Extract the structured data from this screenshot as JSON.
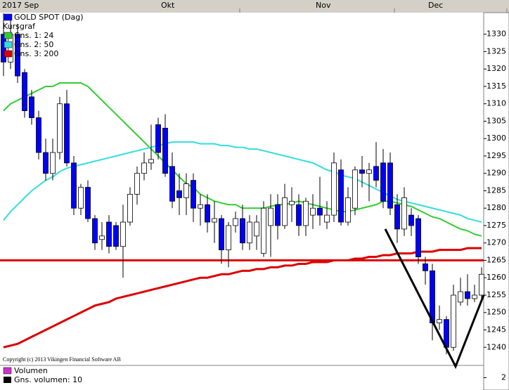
{
  "chart_data": {
    "type": "candlestick",
    "title": "GOLD SPOT (Dag)",
    "candle_name": "Kursgraf",
    "up_color": "#ffffff",
    "down_color": "#0000ff",
    "categories": [
      "2017 Sep",
      null,
      null,
      null,
      null,
      null,
      null,
      null,
      null,
      null,
      null,
      null,
      null,
      null,
      null,
      null,
      null,
      null,
      null,
      null,
      null,
      null,
      null,
      "Okt",
      null,
      null,
      null,
      null,
      null,
      null,
      null,
      null,
      null,
      null,
      null,
      null,
      null,
      null,
      null,
      null,
      null,
      null,
      null,
      null,
      null,
      "Nov",
      null,
      null,
      null,
      null,
      null,
      null,
      null,
      null,
      null,
      null,
      null,
      null,
      null,
      null,
      null,
      "Dec",
      null,
      null,
      null,
      null,
      null,
      null,
      null
    ],
    "open": [
      1330,
      1322,
      1330,
      1319,
      1312,
      1306,
      1296,
      1290,
      1296,
      1310,
      1293,
      1280,
      1286,
      1277,
      1271,
      1276,
      1275,
      1269,
      1276,
      1284,
      1290,
      1293,
      1304,
      1303,
      1292,
      1285,
      1283,
      1288,
      1280,
      1281,
      1276,
      1277,
      1268,
      1275,
      1277,
      1270,
      1272,
      1267,
      1275,
      1281,
      1275,
      1281,
      1281,
      1275,
      1278,
      1280,
      1276,
      1278,
      1291,
      1276,
      1280,
      1291,
      1290,
      1292,
      1293,
      1293,
      1281,
      1274,
      1278,
      1277,
      1264,
      1262,
      1247,
      1248,
      1240,
      1253,
      1256,
      1254,
      1255
    ],
    "high": [
      1336,
      1334,
      1333,
      1320,
      1314,
      1308,
      1300,
      1300,
      1312,
      1314,
      1295,
      1287,
      1288,
      1278,
      1276,
      1278,
      1276,
      1281,
      1286,
      1292,
      1296,
      1304,
      1306,
      1307,
      1296,
      1290,
      1290,
      1290,
      1284,
      1284,
      1282,
      1278,
      1276,
      1279,
      1281,
      1278,
      1278,
      1282,
      1284,
      1284,
      1287,
      1286,
      1284,
      1283,
      1284,
      1289,
      1282,
      1296,
      1294,
      1286,
      1292,
      1295,
      1293,
      1299,
      1297,
      1296,
      1284,
      1286,
      1280,
      1278,
      1266,
      1264,
      1252,
      1249,
      1258,
      1260,
      1261,
      1258,
      1263
    ],
    "low": [
      1318,
      1320,
      1316,
      1306,
      1304,
      1294,
      1288,
      1288,
      1294,
      1292,
      1278,
      1278,
      1276,
      1268,
      1268,
      1267,
      1268,
      1260,
      1275,
      1281,
      1288,
      1291,
      1294,
      1289,
      1280,
      1278,
      1278,
      1276,
      1275,
      1273,
      1270,
      1264,
      1263,
      1273,
      1268,
      1268,
      1268,
      1266,
      1266,
      1271,
      1274,
      1276,
      1272,
      1272,
      1274,
      1275,
      1274,
      1276,
      1275,
      1275,
      1278,
      1286,
      1282,
      1286,
      1280,
      1278,
      1270,
      1272,
      1272,
      1264,
      1258,
      1242,
      1245,
      1238,
      1239,
      1252,
      1252,
      1253,
      1253
    ],
    "close": [
      1322,
      1330,
      1318,
      1308,
      1306,
      1296,
      1290,
      1296,
      1310,
      1293,
      1280,
      1286,
      1277,
      1270,
      1272,
      1269,
      1269,
      1276,
      1284,
      1290,
      1293,
      1294,
      1296,
      1290,
      1282,
      1283,
      1287,
      1280,
      1281,
      1276,
      1277,
      1268,
      1275,
      1277,
      1270,
      1276,
      1276,
      1280,
      1280,
      1275,
      1283,
      1282,
      1275,
      1282,
      1280,
      1278,
      1278,
      1293,
      1276,
      1283,
      1291,
      1290,
      1291,
      1288,
      1282,
      1280,
      1274,
      1283,
      1275,
      1266,
      1262,
      1247,
      1248,
      1240,
      1255,
      1256,
      1254,
      1255,
      1261
    ],
    "series": [
      {
        "name": "Gns. 1: 24",
        "color": "#33cc33",
        "values": [
          1308,
          1310,
          1311,
          1312,
          1313,
          1314,
          1315,
          1315,
          1316,
          1316,
          1316,
          1316,
          1315,
          1313,
          1311,
          1309,
          1307,
          1305,
          1303,
          1301,
          1299,
          1297,
          1295,
          1293,
          1291,
          1289,
          1287,
          1286,
          1284,
          1283,
          1282,
          1281.5,
          1281,
          1281,
          1280,
          1280,
          1280,
          1280,
          1280.5,
          1281,
          1281,
          1281.5,
          1282,
          1281.5,
          1281,
          1280.5,
          1280,
          1279.5,
          1279,
          1279,
          1279.5,
          1280,
          1280.5,
          1281,
          1282,
          1282,
          1281.5,
          1281,
          1280.5,
          1279.5,
          1278.5,
          1277.5,
          1277,
          1276,
          1275,
          1274,
          1273.5,
          1272.5,
          1272
        ]
      },
      {
        "name": "Gns. 2: 50",
        "color": "#33dddd",
        "values": [
          1276.5,
          1279,
          1281,
          1283,
          1285,
          1286.5,
          1288,
          1289,
          1290.5,
          1291.5,
          1292,
          1292.5,
          1293,
          1293.5,
          1294,
          1294.5,
          1295,
          1295.5,
          1296,
          1296.5,
          1297,
          1297.5,
          1298,
          1298.5,
          1299,
          1299,
          1299,
          1299,
          1298.5,
          1298.5,
          1298.5,
          1298,
          1298,
          1297.5,
          1297.5,
          1297,
          1297,
          1296.5,
          1296,
          1295.5,
          1295,
          1294.5,
          1294,
          1293.5,
          1293,
          1292,
          1291,
          1290.5,
          1289.5,
          1289,
          1288.5,
          1287.5,
          1286.5,
          1285.5,
          1284.5,
          1283.5,
          1282.5,
          1282,
          1281.5,
          1281,
          1280.5,
          1280,
          1279.5,
          1279,
          1278.5,
          1278,
          1277,
          1276.5,
          1276
        ]
      },
      {
        "name": "Gns. 3: 200",
        "color": "#dd0000",
        "values": [
          1240,
          1240.5,
          1241,
          1242,
          1243,
          1244,
          1245,
          1246,
          1247,
          1248,
          1249,
          1250,
          1251,
          1252,
          1252.5,
          1253,
          1254,
          1254.5,
          1255,
          1255.5,
          1256,
          1256.5,
          1257,
          1257.5,
          1258,
          1258.5,
          1259,
          1259.5,
          1260,
          1260,
          1260.5,
          1261,
          1261,
          1261.5,
          1262,
          1262,
          1262.5,
          1262.5,
          1263,
          1263,
          1263.5,
          1263.5,
          1264,
          1264,
          1264.5,
          1264.5,
          1264.5,
          1265,
          1265,
          1265,
          1265.5,
          1265.5,
          1266,
          1266,
          1266.5,
          1266.5,
          1267,
          1267,
          1267,
          1267.5,
          1267.5,
          1267.5,
          1268,
          1268,
          1268,
          1268,
          1268.5,
          1268.5,
          1268.5
        ]
      }
    ],
    "hline": {
      "value": 1265,
      "color": "#dd0000"
    },
    "trendline": {
      "x": [
        54.3,
        64.3,
        68.3
      ],
      "y": [
        1274,
        1234.5,
        1255
      ],
      "color": "#000000"
    },
    "ylim": [
      1234.8,
      1336.2
    ],
    "yticks": [
      1240,
      1245,
      1250,
      1255,
      1260,
      1265,
      1270,
      1275,
      1280,
      1285,
      1290,
      1295,
      1300,
      1305,
      1310,
      1315,
      1320,
      1325,
      1330
    ],
    "copyright": "Copyright (c) 2013 Vikingen Financial Software AB",
    "volume": {
      "legend": "Volumen",
      "legend_color": "#cc33cc",
      "average": "Gns. volumen: 10",
      "average_color": "#000000",
      "yticks": [
        2
      ],
      "ylim": [
        0,
        4
      ]
    }
  }
}
